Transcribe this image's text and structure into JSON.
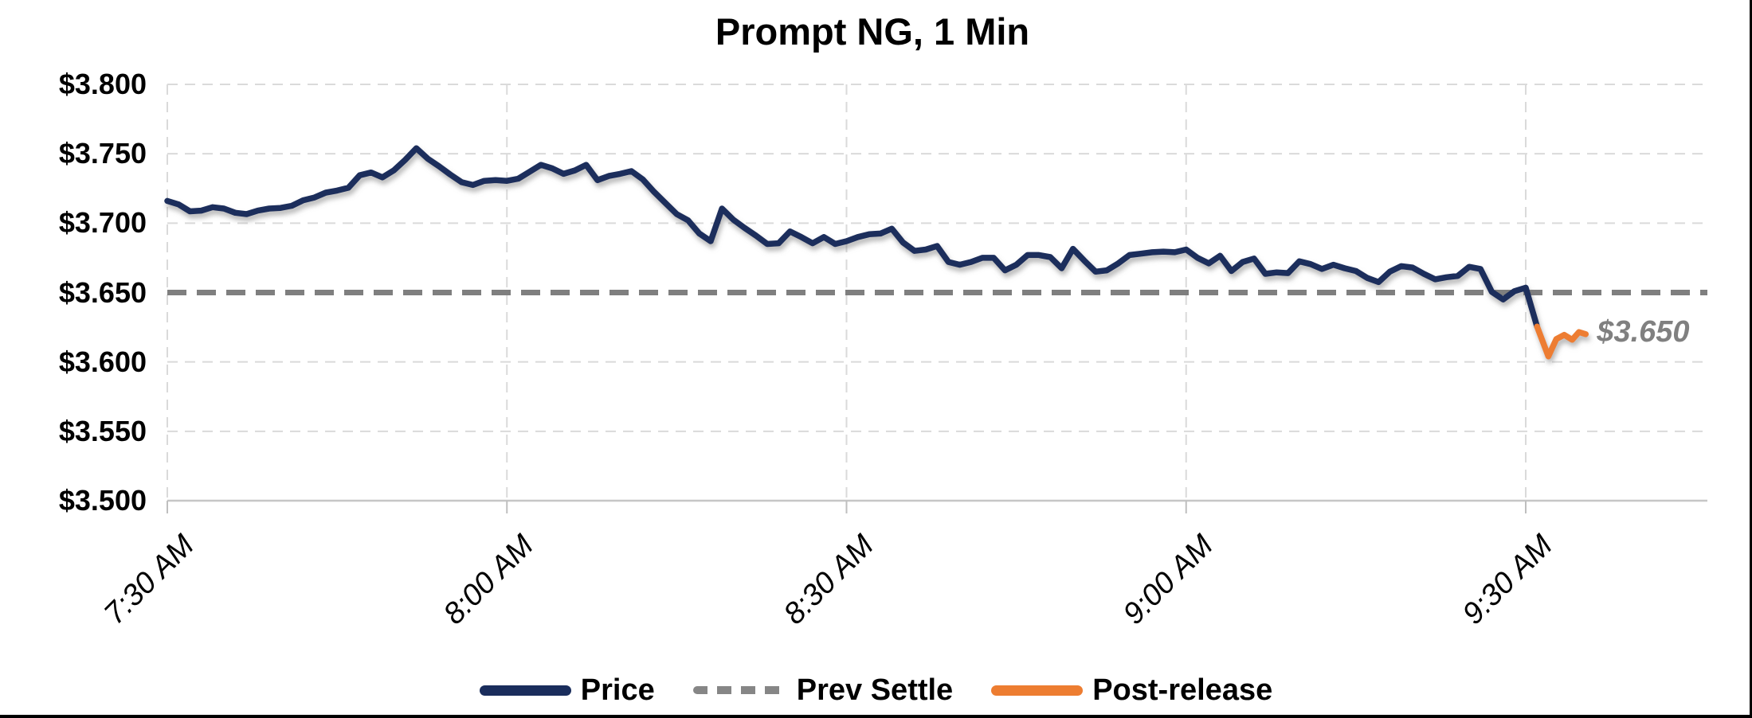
{
  "title": "Prompt NG, 1 Min",
  "annotation": {
    "text": "$3.650",
    "color": "#808080"
  },
  "legend": {
    "items": [
      {
        "label": "Price",
        "color": "#1a2d5c",
        "style": "solid"
      },
      {
        "label": "Prev Settle",
        "color": "#7f7f7f",
        "style": "dashed"
      },
      {
        "label": "Post-release",
        "color": "#ED7D31",
        "style": "solid"
      }
    ]
  },
  "colors": {
    "price_line": "#1a2d5c",
    "post_release_line": "#ED7D31",
    "prev_settle_line": "#7f7f7f",
    "gridline": "#dadada",
    "axis_line": "#c6c6c6",
    "tick_mark": "#bfbfbf",
    "annotation_text": "#808080",
    "background": "#ffffff"
  },
  "chart_data": {
    "type": "line",
    "title": "Prompt NG, 1 Min",
    "xlabel": "",
    "ylabel": "",
    "grid": "dashed",
    "legend_position": "bottom",
    "x_axis": {
      "unit": "minutes since 7:30 AM",
      "ticks": [
        {
          "label": "7:30 AM",
          "minute": 0
        },
        {
          "label": "8:00 AM",
          "minute": 30
        },
        {
          "label": "8:30 AM",
          "minute": 60
        },
        {
          "label": "9:00 AM",
          "minute": 90
        },
        {
          "label": "9:30 AM",
          "minute": 120
        }
      ],
      "xlim_minutes": [
        0,
        136
      ]
    },
    "y_axis": {
      "format": "dollars",
      "ylim": [
        3.5,
        3.8
      ],
      "ticks": [
        {
          "label": "$3.800",
          "value": 3.8
        },
        {
          "label": "$3.750",
          "value": 3.75
        },
        {
          "label": "$3.700",
          "value": 3.7
        },
        {
          "label": "$3.650",
          "value": 3.65
        },
        {
          "label": "$3.600",
          "value": 3.6
        },
        {
          "label": "$3.550",
          "value": 3.55
        },
        {
          "label": "$3.500",
          "value": 3.5
        }
      ]
    },
    "prev_settle_value": 3.65,
    "series": [
      {
        "name": "Price",
        "color": "#1a2d5c",
        "style": "solid",
        "start_minute": 0,
        "step_minutes": 1,
        "values": [
          3.716,
          3.7135,
          3.7085,
          3.709,
          3.7115,
          3.7105,
          3.7075,
          3.7065,
          3.709,
          3.7105,
          3.711,
          3.7125,
          3.7165,
          3.7185,
          3.722,
          3.7235,
          3.7255,
          3.7345,
          3.7365,
          3.733,
          3.738,
          3.7455,
          3.754,
          3.7465,
          3.741,
          3.735,
          3.7295,
          3.7275,
          3.7305,
          3.731,
          3.7305,
          3.732,
          3.737,
          3.742,
          3.7395,
          3.7355,
          3.738,
          3.742,
          3.731,
          3.734,
          3.7355,
          3.7375,
          3.7315,
          3.7225,
          3.7145,
          3.7065,
          3.702,
          3.6925,
          3.687,
          3.7105,
          3.7025,
          3.6965,
          3.691,
          3.685,
          3.6855,
          3.694,
          3.69,
          3.6855,
          3.69,
          3.685,
          3.687,
          3.69,
          3.692,
          3.6925,
          3.696,
          3.686,
          3.68,
          3.681,
          3.6835,
          3.672,
          3.67,
          3.672,
          3.675,
          3.675,
          3.666,
          3.67,
          3.677,
          3.677,
          3.6755,
          3.6675,
          3.6815,
          3.673,
          3.665,
          3.666,
          3.671,
          3.677,
          3.678,
          3.679,
          3.6795,
          3.679,
          3.681,
          3.675,
          3.671,
          3.6765,
          3.6655,
          3.672,
          3.6745,
          3.6635,
          3.6645,
          3.664,
          3.6725,
          3.6705,
          3.667,
          3.67,
          3.6675,
          3.6655,
          3.6605,
          3.6575,
          3.665,
          3.669,
          3.668,
          3.6635,
          3.6595,
          3.661,
          3.662,
          3.6685,
          3.667,
          3.6505,
          3.645,
          3.651,
          3.6535,
          3.6255
        ]
      },
      {
        "name": "Post-release",
        "color": "#ED7D31",
        "style": "solid",
        "minutes": [
          121,
          122,
          122.7,
          123.4,
          124.1,
          124.7,
          125.3
        ],
        "values": [
          3.6255,
          3.604,
          3.6165,
          3.6195,
          3.616,
          3.6215,
          3.62
        ]
      },
      {
        "name": "Prev Settle",
        "color": "#7f7f7f",
        "style": "dashed",
        "value": 3.65
      }
    ],
    "annotation": {
      "text": "$3.650",
      "attached_to": "end of Post-release line"
    }
  }
}
